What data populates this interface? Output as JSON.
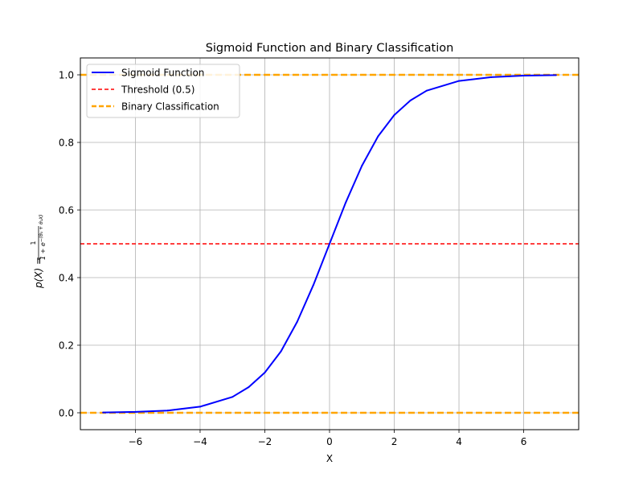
{
  "chart_data": {
    "type": "line",
    "title": "Sigmoid Function and Binary Classification",
    "xlabel": "X",
    "ylabel": "p(X) = 1 / (1 + e^{-(θ₀ + θ₁X)})",
    "ylabel_parts": {
      "lhs": "p(X) = ",
      "numerator": "1",
      "denominator_base": "1 + e",
      "denominator_exponent": "−(θ₀ + θ₁X)"
    },
    "xlim": [
      -7.7,
      7.7
    ],
    "ylim": [
      -0.05,
      1.05
    ],
    "xticks": [
      -6,
      -4,
      -2,
      0,
      2,
      4,
      6
    ],
    "xtick_labels": [
      "−6",
      "−4",
      "−2",
      "0",
      "2",
      "4",
      "6"
    ],
    "yticks": [
      0.0,
      0.2,
      0.4,
      0.6,
      0.8,
      1.0
    ],
    "ytick_labels": [
      "0.0",
      "0.2",
      "0.4",
      "0.6",
      "0.8",
      "1.0"
    ],
    "grid": true,
    "legend_position": "top-left",
    "series": [
      {
        "name": "Sigmoid Function",
        "kind": "curve",
        "color": "#0000ff",
        "style": "solid",
        "x": [
          -7,
          -6,
          -5,
          -4,
          -3,
          -2.5,
          -2,
          -1.5,
          -1,
          -0.5,
          0,
          0.5,
          1,
          1.5,
          2,
          2.5,
          3,
          4,
          5,
          6,
          7
        ],
        "y": [
          0.0009,
          0.0025,
          0.0067,
          0.018,
          0.047,
          0.076,
          0.119,
          0.182,
          0.269,
          0.378,
          0.5,
          0.622,
          0.731,
          0.818,
          0.881,
          0.924,
          0.953,
          0.982,
          0.993,
          0.9975,
          0.9991
        ]
      },
      {
        "name": "Threshold (0.5)",
        "kind": "hline",
        "color": "#ff0000",
        "style": "dashed",
        "y": 0.5
      },
      {
        "name": "Binary Classification",
        "kind": "hline",
        "color": "#ffa500",
        "style": "dashed",
        "y": 0.0
      },
      {
        "kind": "hline",
        "color": "#ffa500",
        "style": "dashed",
        "y": 1.0
      }
    ]
  }
}
